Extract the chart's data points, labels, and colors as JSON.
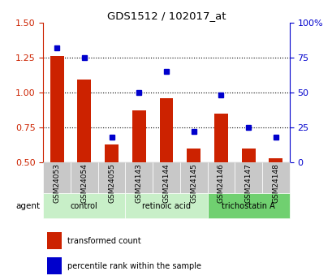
{
  "title": "GDS1512 / 102017_at",
  "samples": [
    "GSM24053",
    "GSM24054",
    "GSM24055",
    "GSM24143",
    "GSM24144",
    "GSM24145",
    "GSM24146",
    "GSM24147",
    "GSM24148"
  ],
  "transformed_count": [
    1.26,
    1.09,
    0.63,
    0.87,
    0.96,
    0.6,
    0.85,
    0.6,
    0.53
  ],
  "percentile_rank": [
    82,
    75,
    18,
    50,
    65,
    22,
    48,
    25,
    18
  ],
  "ylim_left": [
    0.5,
    1.5
  ],
  "ylim_right": [
    0,
    100
  ],
  "yticks_left": [
    0.5,
    0.75,
    1.0,
    1.25,
    1.5
  ],
  "yticks_right": [
    0,
    25,
    50,
    75,
    100
  ],
  "groups": [
    {
      "label": "control",
      "indices": [
        0,
        1,
        2
      ],
      "color": "#c8efc8"
    },
    {
      "label": "retinoic acid",
      "indices": [
        3,
        4,
        5
      ],
      "color": "#c8efc8"
    },
    {
      "label": "trichostatin A",
      "indices": [
        6,
        7,
        8
      ],
      "color": "#70d070"
    }
  ],
  "bar_color": "#cc2200",
  "dot_color": "#0000cc",
  "bar_width": 0.5,
  "agent_label": "agent",
  "legend_bar": "transformed count",
  "legend_dot": "percentile rank within the sample",
  "bar_bottom": 0.5,
  "left_axis_color": "#cc2200",
  "right_axis_color": "#0000cc",
  "grid_color": "black",
  "sample_box_color": "#c8c8c8"
}
